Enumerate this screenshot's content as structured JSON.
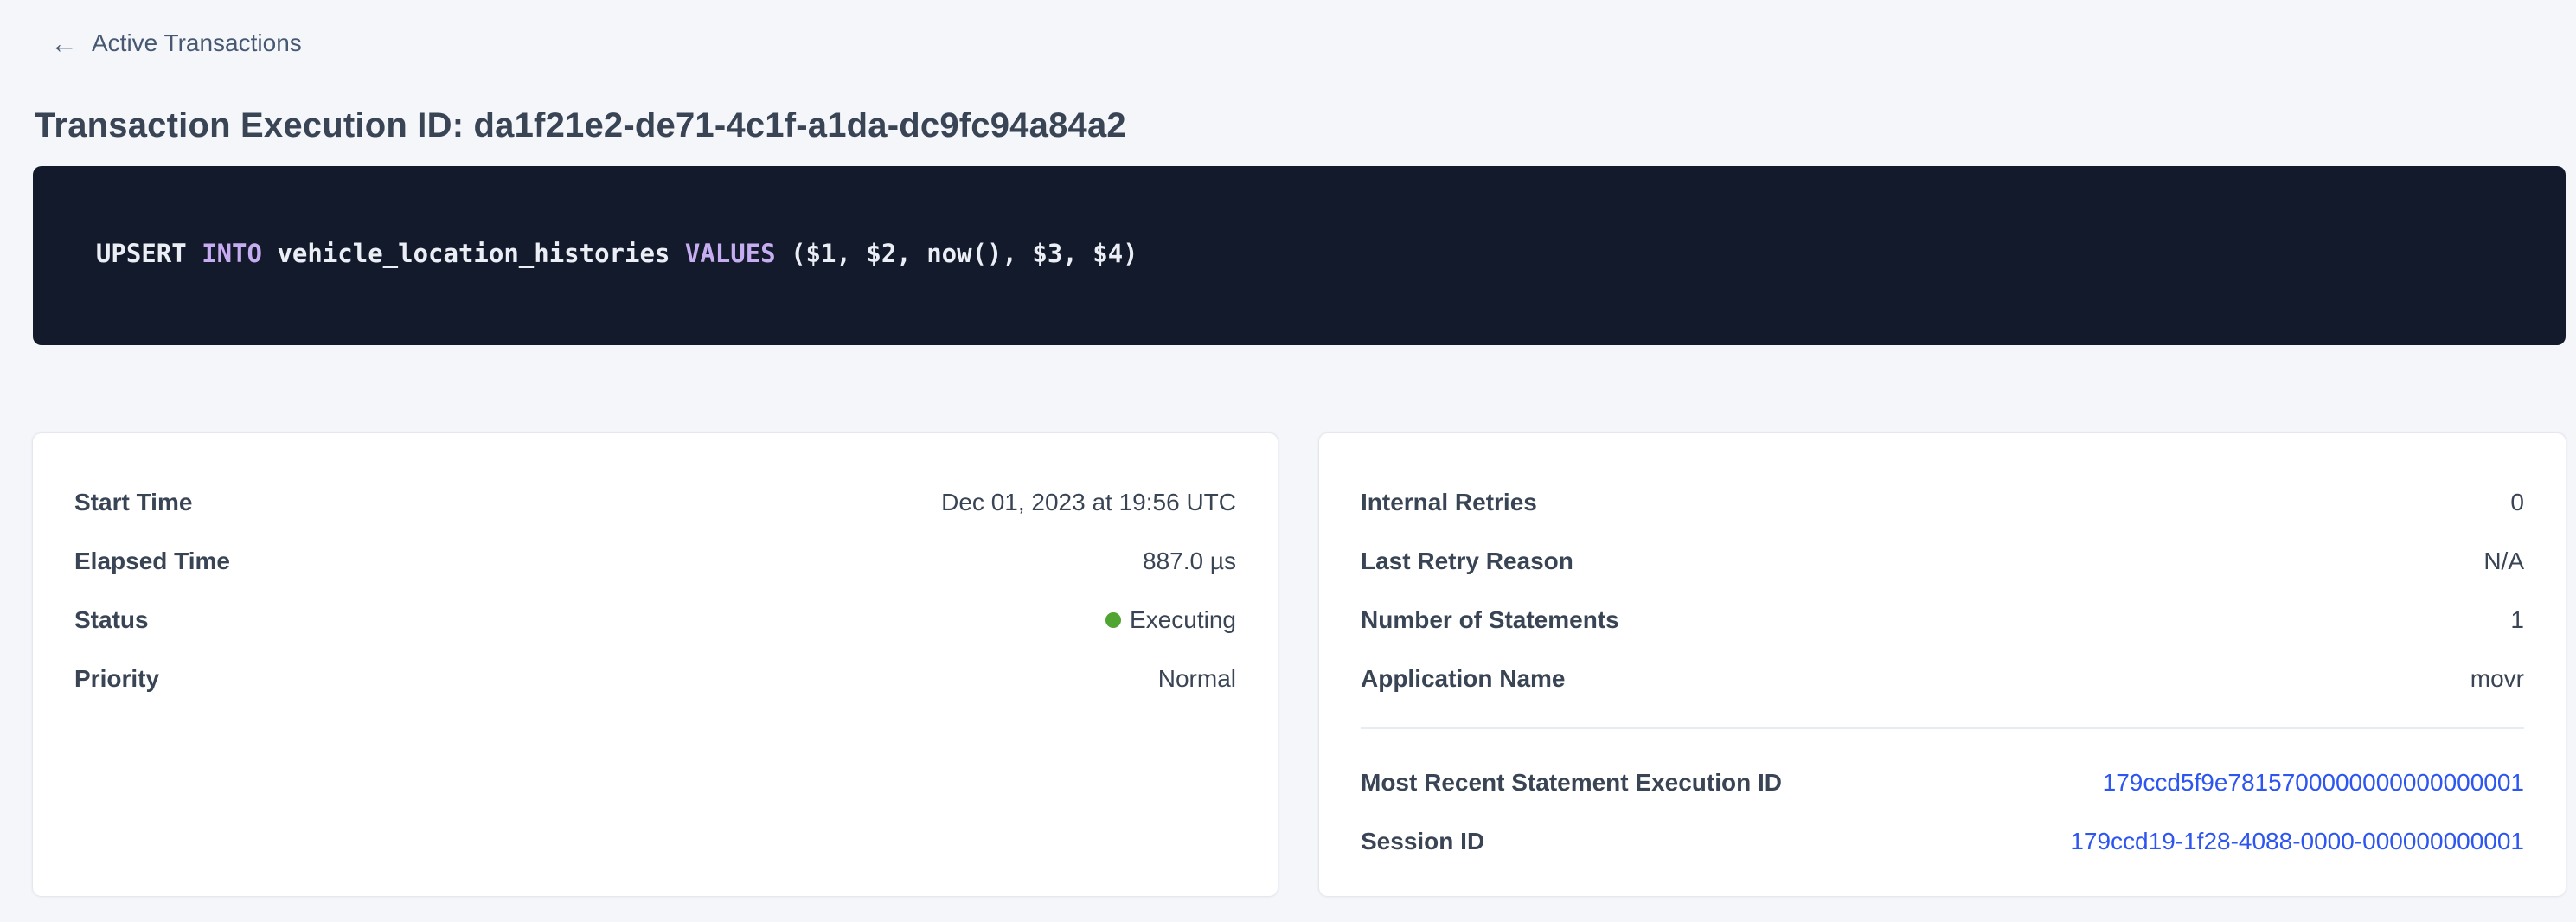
{
  "colors": {
    "page_background": "#f4f6fa",
    "code_background": "#121a2b",
    "sql_keyword": "#c6acf0",
    "sql_plain": "#eceef5",
    "status_executing_dot": "#50a532",
    "link_blue": "#2d55f0",
    "text_dark": "#394455"
  },
  "header": {
    "back_icon": "←",
    "back_label": "Active Transactions",
    "title": "Transaction Execution ID: da1f21e2-de71-4c1f-a1da-dc9fc94a84a2"
  },
  "sql": {
    "full_statement": "UPSERT INTO vehicle_location_histories VALUES ($1, $2, now(), $3, $4)",
    "tokens": {
      "t1": "UPSERT ",
      "t2": "INTO ",
      "t3": "vehicle_location_histories ",
      "t4": "VALUES ",
      "t5": "($1, $2, now(), $3, $4)"
    }
  },
  "overview_card": {
    "rows": [
      {
        "label": "Start Time",
        "value": "Dec 01, 2023 at 19:56 UTC"
      },
      {
        "label": "Elapsed Time",
        "value": "887.0 µs"
      },
      {
        "label": "Status",
        "value": "Executing"
      },
      {
        "label": "Priority",
        "value": "Normal"
      }
    ]
  },
  "details_card": {
    "rows": [
      {
        "label": "Internal Retries",
        "value": "0"
      },
      {
        "label": "Last Retry Reason",
        "value": "N/A"
      },
      {
        "label": "Number of Statements",
        "value": "1"
      },
      {
        "label": "Application Name",
        "value": "movr"
      }
    ],
    "links": [
      {
        "label": "Most Recent Statement Execution ID",
        "value": "179ccd5f9e7815700000000000000001"
      },
      {
        "label": "Session ID",
        "value": "179ccd19-1f28-4088-0000-000000000001"
      }
    ]
  }
}
